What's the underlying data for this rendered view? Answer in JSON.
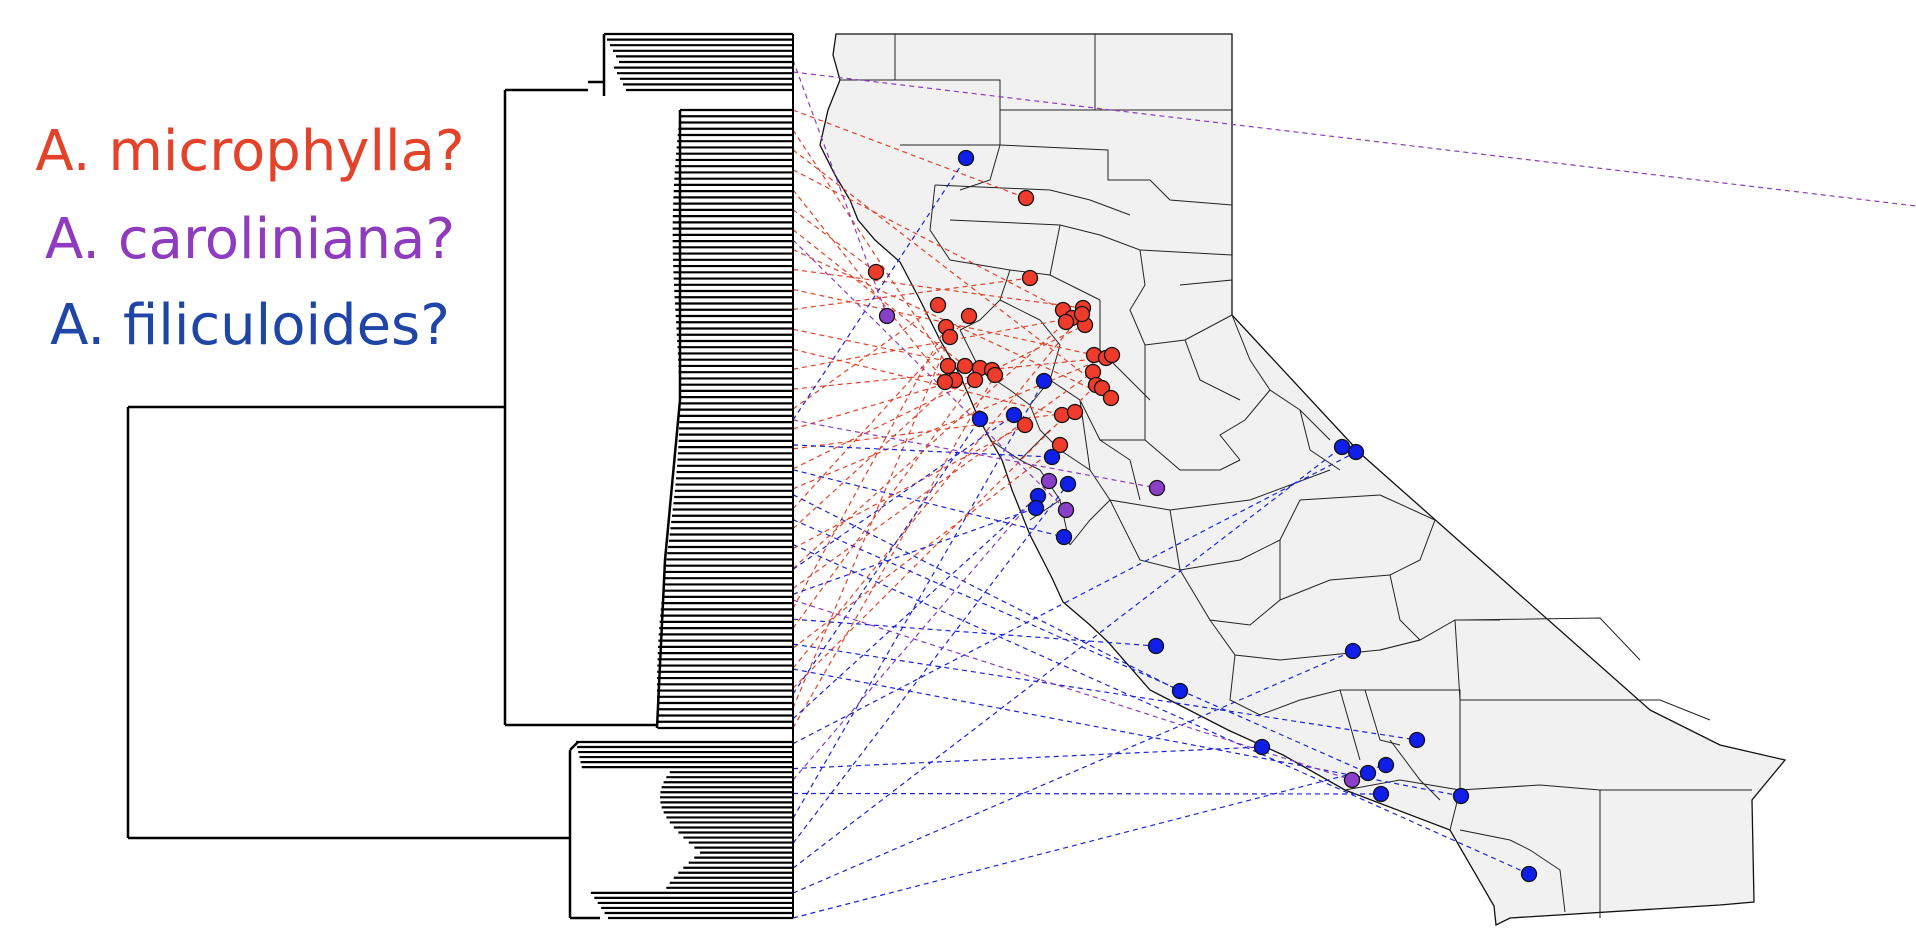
{
  "legend": {
    "items": [
      {
        "label": "A. microphylla?",
        "color": "#e2432a"
      },
      {
        "label": "A. caroliniana?",
        "color": "#8e3bbd"
      },
      {
        "label": "A. filiculoides?",
        "color": "#1f45a6"
      }
    ]
  },
  "colors": {
    "microphylla_point": "#ee3b2b",
    "caroliniana_point": "#8a3fc9",
    "filiculoides_point": "#0f1ee8",
    "map_fill": "#f1f1f1",
    "tree_stroke": "#000000"
  },
  "icons": {
    "tree": "dendrogram-icon",
    "map": "california-counties-map-icon"
  }
}
